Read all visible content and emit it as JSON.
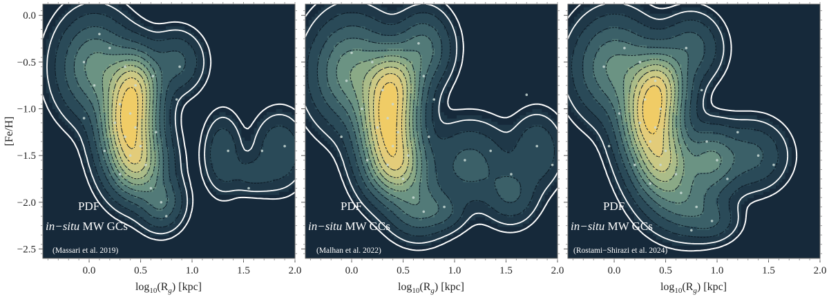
{
  "colors": {
    "background": "#16293a",
    "levels": [
      "#1f3848",
      "#2a4a58",
      "#3b6068",
      "#527a78",
      "#6b9383",
      "#8aa986",
      "#abbc88",
      "#cbc985",
      "#e3cc7a",
      "#f0cc66"
    ],
    "dots": "#c8d8d4",
    "outline": "#ffffff"
  },
  "y_axis_label": "[Fe/H]",
  "panels": [
    {
      "title": "PDF",
      "subtitle_italic": "in−situ",
      "subtitle_rest": " MW GCs",
      "reference": "(Massari et al. 2019)",
      "xlabel": "log",
      "xlabel_sub": "10",
      "xlabel_mid": "(R",
      "xlabel_sub2": "g",
      "xlabel_end": ") [kpc]",
      "x_ticks": [
        "0.0",
        "0.5",
        "1.0",
        "1.5",
        "2.0"
      ],
      "y_ticks": [
        "0.0",
        "−0.5",
        "−1.0",
        "−1.5",
        "−2.0",
        "−2.5"
      ]
    },
    {
      "title": "PDF",
      "subtitle_italic": "in−situ",
      "subtitle_rest": " MW GCs",
      "reference": "(Malhan et al. 2022)",
      "xlabel": "log",
      "xlabel_sub": "10",
      "xlabel_mid": "(R",
      "xlabel_sub2": "g",
      "xlabel_end": ") [kpc]",
      "x_ticks": [
        "0.0",
        "0.5",
        "1.0",
        "1.5",
        "2.0"
      ],
      "y_ticks": []
    },
    {
      "title": "PDF",
      "subtitle_italic": "in−situ",
      "subtitle_rest": " MW GCs",
      "reference": "(Rostami−Shirazi et al. 2024)",
      "xlabel": "log",
      "xlabel_sub": "10",
      "xlabel_mid": "(R",
      "xlabel_sub2": "g",
      "xlabel_end": ") [kpc]",
      "x_ticks": [
        "0.0",
        "0.5",
        "1.0",
        "1.5",
        "2.0"
      ],
      "y_ticks": []
    }
  ],
  "chart_data": [
    {
      "type": "contour",
      "title": "PDF in-situ MW GCs (Massari et al. 2019)",
      "xlabel": "log10(Rg) [kpc]",
      "ylabel": "[Fe/H]",
      "xlim": [
        -0.45,
        2.0
      ],
      "ylim": [
        -2.6,
        0.12
      ],
      "x_ticks": [
        0.0,
        0.5,
        1.0,
        1.5,
        2.0
      ],
      "y_ticks": [
        0.0,
        -0.5,
        -1.0,
        -1.5,
        -2.0,
        -2.5
      ],
      "density_components": [
        {
          "x": 0.38,
          "y": -1.15,
          "sx": 0.16,
          "sy": 0.3,
          "w": 1.0
        },
        {
          "x": 0.45,
          "y": -0.72,
          "sx": 0.15,
          "sy": 0.22,
          "w": 0.55
        },
        {
          "x": 0.48,
          "y": -1.6,
          "sx": 0.16,
          "sy": 0.22,
          "w": 0.55
        },
        {
          "x": 0.05,
          "y": -0.55,
          "sx": 0.2,
          "sy": 0.3,
          "w": 0.35
        },
        {
          "x": 0.7,
          "y": -2.0,
          "sx": 0.12,
          "sy": 0.16,
          "w": 0.22
        },
        {
          "x": 0.85,
          "y": -0.5,
          "sx": 0.14,
          "sy": 0.18,
          "w": 0.15
        },
        {
          "x": 1.3,
          "y": -1.48,
          "sx": 0.1,
          "sy": 0.22,
          "w": 0.12
        },
        {
          "x": 1.85,
          "y": -1.45,
          "sx": 0.14,
          "sy": 0.22,
          "w": 0.12
        },
        {
          "x": 1.58,
          "y": -1.7,
          "sx": 0.14,
          "sy": 0.12,
          "w": 0.07
        }
      ],
      "points": [
        [
          -0.05,
          -0.5
        ],
        [
          0.1,
          -0.2
        ],
        [
          0.2,
          -0.35
        ],
        [
          0.35,
          -0.55
        ],
        [
          0.45,
          -0.75
        ],
        [
          0.3,
          -0.95
        ],
        [
          0.4,
          -1.05
        ],
        [
          0.25,
          -1.15
        ],
        [
          0.45,
          -1.2
        ],
        [
          0.35,
          -1.3
        ],
        [
          0.5,
          -1.4
        ],
        [
          0.4,
          -1.5
        ],
        [
          0.55,
          -1.6
        ],
        [
          0.3,
          -1.7
        ],
        [
          0.6,
          -1.85
        ],
        [
          0.7,
          -2.0
        ],
        [
          0.75,
          -2.15
        ],
        [
          0.05,
          -0.75
        ],
        [
          -0.05,
          -1.1
        ],
        [
          0.15,
          -1.45
        ],
        [
          0.85,
          -0.9
        ],
        [
          0.88,
          -0.55
        ],
        [
          0.62,
          -0.65
        ],
        [
          0.65,
          -1.25
        ],
        [
          1.35,
          -1.45
        ],
        [
          1.9,
          -1.4
        ],
        [
          1.55,
          -1.85
        ],
        [
          1.68,
          -1.45
        ]
      ]
    },
    {
      "type": "contour",
      "title": "PDF in-situ MW GCs (Malhan et al. 2022)",
      "xlabel": "log10(Rg) [kpc]",
      "ylabel": "[Fe/H]",
      "xlim": [
        -0.45,
        2.0
      ],
      "ylim": [
        -2.6,
        0.12
      ],
      "x_ticks": [
        0.0,
        0.5,
        1.0,
        1.5,
        2.0
      ],
      "y_ticks": [
        0.0,
        -0.5,
        -1.0,
        -1.5,
        -2.0,
        -2.5
      ],
      "density_components": [
        {
          "x": 0.35,
          "y": -1.15,
          "sx": 0.17,
          "sy": 0.32,
          "w": 1.0
        },
        {
          "x": 0.42,
          "y": -0.7,
          "sx": 0.16,
          "sy": 0.22,
          "w": 0.55
        },
        {
          "x": 0.45,
          "y": -1.62,
          "sx": 0.17,
          "sy": 0.22,
          "w": 0.6
        },
        {
          "x": 0.0,
          "y": -0.6,
          "sx": 0.22,
          "sy": 0.32,
          "w": 0.4
        },
        {
          "x": 0.7,
          "y": -0.35,
          "sx": 0.15,
          "sy": 0.22,
          "w": 0.25
        },
        {
          "x": 0.65,
          "y": -2.05,
          "sx": 0.16,
          "sy": 0.18,
          "w": 0.25
        },
        {
          "x": 1.15,
          "y": -1.6,
          "sx": 0.22,
          "sy": 0.25,
          "w": 0.16
        },
        {
          "x": 1.55,
          "y": -1.9,
          "sx": 0.14,
          "sy": 0.18,
          "w": 0.14
        },
        {
          "x": 1.8,
          "y": -1.45,
          "sx": 0.14,
          "sy": 0.22,
          "w": 0.12
        },
        {
          "x": 0.9,
          "y": -2.1,
          "sx": 0.12,
          "sy": 0.12,
          "w": 0.1
        }
      ],
      "points": [
        [
          -0.05,
          -0.7
        ],
        [
          0.0,
          -0.4
        ],
        [
          0.2,
          -0.5
        ],
        [
          0.3,
          -0.8
        ],
        [
          0.4,
          -0.95
        ],
        [
          0.35,
          -1.1
        ],
        [
          0.25,
          -1.2
        ],
        [
          0.45,
          -1.25
        ],
        [
          0.4,
          -1.4
        ],
        [
          0.55,
          -1.5
        ],
        [
          0.35,
          -1.6
        ],
        [
          0.5,
          -1.75
        ],
        [
          0.6,
          -1.95
        ],
        [
          0.7,
          -2.1
        ],
        [
          0.65,
          -0.3
        ],
        [
          0.7,
          -0.65
        ],
        [
          0.8,
          -0.9
        ],
        [
          0.1,
          -1.0
        ],
        [
          0.15,
          -1.55
        ],
        [
          -0.1,
          -1.3
        ],
        [
          1.1,
          -1.55
        ],
        [
          1.35,
          -1.45
        ],
        [
          1.55,
          -1.7
        ],
        [
          1.8,
          -1.4
        ],
        [
          1.7,
          -0.85
        ],
        [
          1.95,
          -1.6
        ],
        [
          0.9,
          -2.05
        ],
        [
          0.75,
          -1.3
        ]
      ]
    },
    {
      "type": "contour",
      "title": "PDF in-situ MW GCs (Rostami-Shirazi et al. 2024)",
      "xlabel": "log10(Rg) [kpc]",
      "ylabel": "[Fe/H]",
      "xlim": [
        -0.45,
        2.0
      ],
      "ylim": [
        -2.6,
        0.12
      ],
      "x_ticks": [
        0.0,
        0.5,
        1.0,
        1.5,
        2.0
      ],
      "y_ticks": [
        0.0,
        -0.5,
        -1.0,
        -1.5,
        -2.0,
        -2.5
      ],
      "density_components": [
        {
          "x": 0.35,
          "y": -1.1,
          "sx": 0.17,
          "sy": 0.3,
          "w": 1.0
        },
        {
          "x": 0.45,
          "y": -0.72,
          "sx": 0.16,
          "sy": 0.22,
          "w": 0.55
        },
        {
          "x": 0.48,
          "y": -1.6,
          "sx": 0.17,
          "sy": 0.24,
          "w": 0.6
        },
        {
          "x": 0.0,
          "y": -0.55,
          "sx": 0.22,
          "sy": 0.3,
          "w": 0.35
        },
        {
          "x": 0.95,
          "y": -1.55,
          "sx": 0.16,
          "sy": 0.2,
          "w": 0.35
        },
        {
          "x": 0.7,
          "y": -2.0,
          "sx": 0.2,
          "sy": 0.2,
          "w": 0.25
        },
        {
          "x": 0.75,
          "y": -0.35,
          "sx": 0.16,
          "sy": 0.2,
          "w": 0.18
        },
        {
          "x": 1.35,
          "y": -1.5,
          "sx": 0.18,
          "sy": 0.2,
          "w": 0.15
        },
        {
          "x": 0.95,
          "y": -2.2,
          "sx": 0.14,
          "sy": 0.12,
          "w": 0.1
        }
      ],
      "points": [
        [
          -0.1,
          -0.55
        ],
        [
          0.1,
          -0.35
        ],
        [
          0.25,
          -0.5
        ],
        [
          0.4,
          -0.7
        ],
        [
          0.3,
          -0.9
        ],
        [
          0.45,
          -1.0
        ],
        [
          0.25,
          -1.15
        ],
        [
          0.4,
          -1.2
        ],
        [
          0.35,
          -1.35
        ],
        [
          0.5,
          -1.45
        ],
        [
          0.45,
          -1.6
        ],
        [
          0.6,
          -1.7
        ],
        [
          0.35,
          -1.8
        ],
        [
          0.65,
          -1.9
        ],
        [
          0.8,
          -2.05
        ],
        [
          0.95,
          -2.2
        ],
        [
          0.7,
          -0.35
        ],
        [
          0.85,
          -0.8
        ],
        [
          1.0,
          -1.55
        ],
        [
          0.9,
          -1.35
        ],
        [
          1.1,
          -1.75
        ],
        [
          1.4,
          -1.5
        ],
        [
          1.55,
          -1.6
        ],
        [
          1.2,
          -1.25
        ],
        [
          0.05,
          -1.05
        ],
        [
          -0.05,
          -1.4
        ],
        [
          0.2,
          -1.6
        ],
        [
          0.75,
          -2.3
        ]
      ]
    }
  ]
}
